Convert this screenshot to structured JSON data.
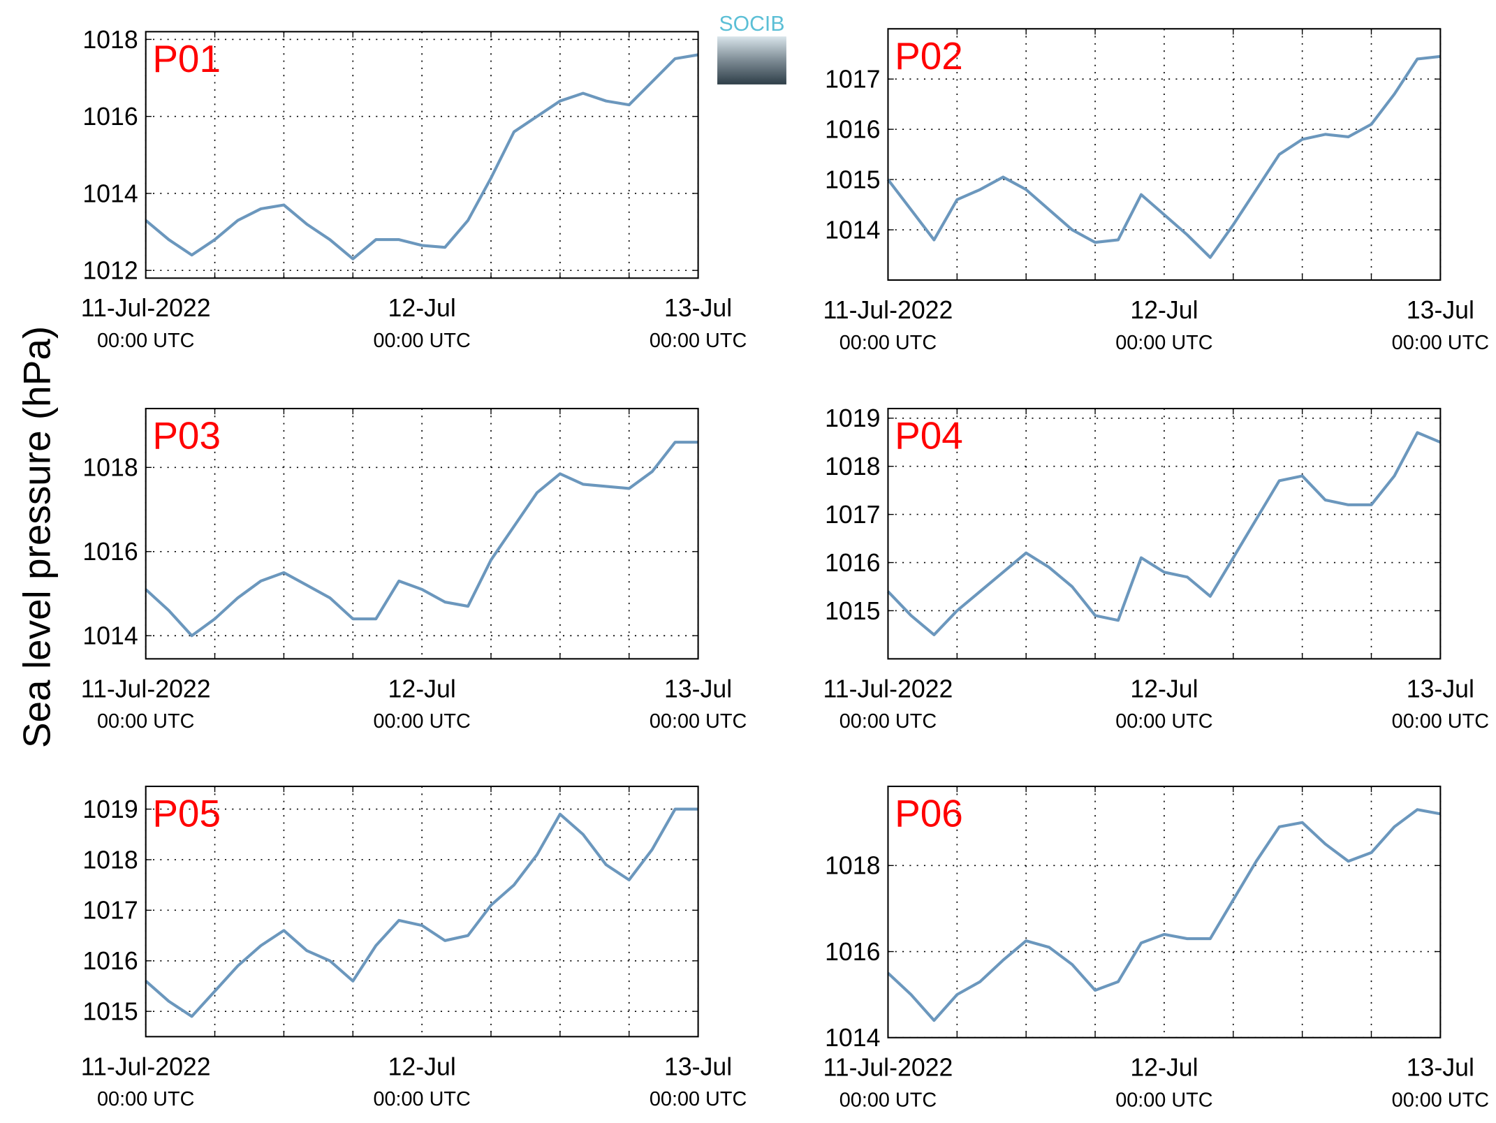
{
  "ylabel": "Sea level pressure (hPa)",
  "logo": "SOCIB",
  "chart_data": [
    {
      "type": "line",
      "title": "P01",
      "xlim": [
        0,
        48
      ],
      "ylim": [
        1011.8,
        1018.2
      ],
      "xticks": [
        {
          "value": 0,
          "label": "11-Jul-2022",
          "sublabel": "00:00 UTC"
        },
        {
          "value": 24,
          "label": "12-Jul",
          "sublabel": "00:00 UTC"
        },
        {
          "value": 48,
          "label": "13-Jul",
          "sublabel": "00:00 UTC"
        }
      ],
      "xminorticks": [
        6,
        12,
        18,
        30,
        36,
        42
      ],
      "yticks": [
        1012,
        1014,
        1016,
        1018
      ],
      "grid": true,
      "x": [
        0,
        2,
        4,
        6,
        8,
        10,
        12,
        14,
        16,
        18,
        20,
        22,
        24,
        26,
        28,
        30,
        32,
        34,
        36,
        38,
        40,
        42,
        44,
        46,
        48
      ],
      "series": [
        {
          "color": "#6b97bd",
          "values": [
            1013.3,
            1012.8,
            1012.4,
            1012.8,
            1013.3,
            1013.6,
            1013.7,
            1013.2,
            1012.8,
            1012.3,
            1012.8,
            1012.8,
            1012.65,
            1012.6,
            1013.3,
            1014.4,
            1015.6,
            1016.0,
            1016.4,
            1016.6,
            1016.4,
            1016.3,
            1016.9,
            1017.5,
            1017.6
          ]
        }
      ]
    },
    {
      "type": "line",
      "title": "P02",
      "xlim": [
        0,
        48
      ],
      "ylim": [
        1013,
        1018
      ],
      "xticks": [
        {
          "value": 0,
          "label": "11-Jul-2022",
          "sublabel": "00:00 UTC"
        },
        {
          "value": 24,
          "label": "12-Jul",
          "sublabel": "00:00 UTC"
        },
        {
          "value": 48,
          "label": "13-Jul",
          "sublabel": "00:00 UTC"
        }
      ],
      "xminorticks": [
        6,
        12,
        18,
        30,
        36,
        42
      ],
      "yticks": [
        1014,
        1015,
        1016,
        1017
      ],
      "grid": true,
      "x": [
        0,
        2,
        4,
        6,
        8,
        10,
        12,
        14,
        16,
        18,
        20,
        22,
        24,
        26,
        28,
        30,
        32,
        34,
        36,
        38,
        40,
        42,
        44,
        46,
        48
      ],
      "series": [
        {
          "color": "#6b97bd",
          "values": [
            1015.0,
            1014.4,
            1013.8,
            1014.6,
            1014.8,
            1015.05,
            1014.8,
            1014.4,
            1014.0,
            1013.75,
            1013.8,
            1014.7,
            1014.3,
            1013.9,
            1013.45,
            1014.1,
            1014.8,
            1015.5,
            1015.8,
            1015.9,
            1015.85,
            1016.1,
            1016.7,
            1017.4,
            1017.45
          ]
        }
      ]
    },
    {
      "type": "line",
      "title": "P03",
      "xlim": [
        0,
        48
      ],
      "ylim": [
        1013.45,
        1019.4
      ],
      "xticks": [
        {
          "value": 0,
          "label": "11-Jul-2022",
          "sublabel": "00:00 UTC"
        },
        {
          "value": 24,
          "label": "12-Jul",
          "sublabel": "00:00 UTC"
        },
        {
          "value": 48,
          "label": "13-Jul",
          "sublabel": "00:00 UTC"
        }
      ],
      "xminorticks": [
        6,
        12,
        18,
        30,
        36,
        42
      ],
      "yticks": [
        1014,
        1016,
        1018
      ],
      "grid": true,
      "x": [
        0,
        2,
        4,
        6,
        8,
        10,
        12,
        14,
        16,
        18,
        20,
        22,
        24,
        26,
        28,
        30,
        32,
        34,
        36,
        38,
        40,
        42,
        44,
        46,
        48
      ],
      "series": [
        {
          "color": "#6b97bd",
          "values": [
            1015.1,
            1014.6,
            1014.0,
            1014.4,
            1014.9,
            1015.3,
            1015.5,
            1015.2,
            1014.9,
            1014.4,
            1014.4,
            1015.3,
            1015.1,
            1014.8,
            1014.7,
            1015.8,
            1016.6,
            1017.4,
            1017.85,
            1017.6,
            1017.55,
            1017.5,
            1017.9,
            1018.6,
            1018.6
          ]
        }
      ]
    },
    {
      "type": "line",
      "title": "P04",
      "xlim": [
        0,
        48
      ],
      "ylim": [
        1014.0,
        1019.2
      ],
      "xticks": [
        {
          "value": 0,
          "label": "11-Jul-2022",
          "sublabel": "00:00 UTC"
        },
        {
          "value": 24,
          "label": "12-Jul",
          "sublabel": "00:00 UTC"
        },
        {
          "value": 48,
          "label": "13-Jul",
          "sublabel": "00:00 UTC"
        }
      ],
      "xminorticks": [
        6,
        12,
        18,
        30,
        36,
        42
      ],
      "yticks": [
        1015,
        1016,
        1017,
        1018,
        1019
      ],
      "grid": true,
      "x": [
        0,
        2,
        4,
        6,
        8,
        10,
        12,
        14,
        16,
        18,
        20,
        22,
        24,
        26,
        28,
        30,
        32,
        34,
        36,
        38,
        40,
        42,
        44,
        46,
        48
      ],
      "series": [
        {
          "color": "#6b97bd",
          "values": [
            1015.4,
            1014.9,
            1014.5,
            1015.0,
            1015.4,
            1015.8,
            1016.2,
            1015.9,
            1015.5,
            1014.9,
            1014.8,
            1016.1,
            1015.8,
            1015.7,
            1015.3,
            1016.1,
            1016.9,
            1017.7,
            1017.8,
            1017.3,
            1017.2,
            1017.2,
            1017.8,
            1018.7,
            1018.5
          ]
        }
      ]
    },
    {
      "type": "line",
      "title": "P05",
      "xlim": [
        0,
        48
      ],
      "ylim": [
        1014.5,
        1019.45
      ],
      "xticks": [
        {
          "value": 0,
          "label": "11-Jul-2022",
          "sublabel": "00:00 UTC"
        },
        {
          "value": 24,
          "label": "12-Jul",
          "sublabel": "00:00 UTC"
        },
        {
          "value": 48,
          "label": "13-Jul",
          "sublabel": "00:00 UTC"
        }
      ],
      "xminorticks": [
        6,
        12,
        18,
        30,
        36,
        42
      ],
      "yticks": [
        1015,
        1016,
        1017,
        1018,
        1019
      ],
      "grid": true,
      "x": [
        0,
        2,
        4,
        6,
        8,
        10,
        12,
        14,
        16,
        18,
        20,
        22,
        24,
        26,
        28,
        30,
        32,
        34,
        36,
        38,
        40,
        42,
        44,
        46,
        48
      ],
      "series": [
        {
          "color": "#6b97bd",
          "values": [
            1015.6,
            1015.2,
            1014.9,
            1015.4,
            1015.9,
            1016.3,
            1016.6,
            1016.2,
            1016.0,
            1015.6,
            1016.3,
            1016.8,
            1016.7,
            1016.4,
            1016.5,
            1017.1,
            1017.5,
            1018.1,
            1018.9,
            1018.5,
            1017.9,
            1017.6,
            1018.2,
            1019.0,
            1019.0
          ]
        }
      ]
    },
    {
      "type": "line",
      "title": "P06",
      "xlim": [
        0,
        48
      ],
      "ylim": [
        1014.0,
        1019.84
      ],
      "xticks": [
        {
          "value": 0,
          "label": "11-Jul-2022",
          "sublabel": "00:00 UTC"
        },
        {
          "value": 24,
          "label": "12-Jul",
          "sublabel": "00:00 UTC"
        },
        {
          "value": 48,
          "label": "13-Jul",
          "sublabel": "00:00 UTC"
        }
      ],
      "xminorticks": [
        6,
        12,
        18,
        30,
        36,
        42
      ],
      "yticks": [
        1014,
        1016,
        1018
      ],
      "grid": true,
      "x": [
        0,
        2,
        4,
        6,
        8,
        10,
        12,
        14,
        16,
        18,
        20,
        22,
        24,
        26,
        28,
        30,
        32,
        34,
        36,
        38,
        40,
        42,
        44,
        46,
        48
      ],
      "series": [
        {
          "color": "#6b97bd",
          "values": [
            1015.5,
            1015.0,
            1014.4,
            1015.0,
            1015.3,
            1015.8,
            1016.25,
            1016.1,
            1015.7,
            1015.1,
            1015.3,
            1016.2,
            1016.4,
            1016.3,
            1016.3,
            1017.2,
            1018.1,
            1018.9,
            1019.0,
            1018.5,
            1018.1,
            1018.3,
            1018.9,
            1019.3,
            1019.2
          ]
        }
      ]
    }
  ]
}
